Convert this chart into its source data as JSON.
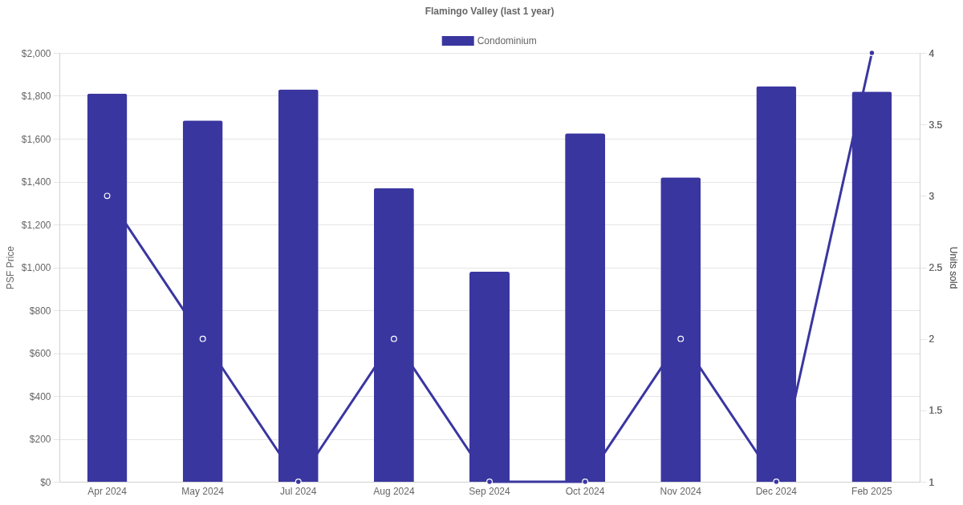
{
  "chart_data": {
    "type": "bar",
    "title": "Flamingo Valley (last 1 year)",
    "ylabel": "PSF Price",
    "y2label": "Units sold",
    "categories": [
      "Apr 2024",
      "May 2024",
      "Jul 2024",
      "Aug 2024",
      "Sep 2024",
      "Oct 2024",
      "Nov 2024",
      "Dec 2024",
      "Feb 2025"
    ],
    "series": [
      {
        "name": "Condominium",
        "color": "#3a36a0",
        "values": [
          1810,
          1685,
          1830,
          1370,
          980,
          1625,
          1420,
          1845,
          1820
        ]
      },
      {
        "type": "line",
        "axis": "y2",
        "color": "#3a36a0",
        "values": [
          3,
          2,
          1,
          2,
          1,
          1,
          2,
          1,
          4
        ]
      }
    ],
    "ylim": [
      0,
      2000
    ],
    "yticks": [
      {
        "value": 0,
        "label": "$0"
      },
      {
        "value": 200,
        "label": "$200"
      },
      {
        "value": 400,
        "label": "$400"
      },
      {
        "value": 600,
        "label": "$600"
      },
      {
        "value": 800,
        "label": "$800"
      },
      {
        "value": 1000,
        "label": "$1,000"
      },
      {
        "value": 1200,
        "label": "$1,200"
      },
      {
        "value": 1400,
        "label": "$1,400"
      },
      {
        "value": 1600,
        "label": "$1,600"
      },
      {
        "value": 1800,
        "label": "$1,800"
      },
      {
        "value": 2000,
        "label": "$2,000"
      }
    ],
    "y2lim": [
      1,
      4
    ],
    "y2ticks": [
      1,
      1.5,
      2,
      2.5,
      3,
      3.5,
      4
    ],
    "grid": "y",
    "legend": "top",
    "marker": "circle",
    "line_style": "solid"
  }
}
